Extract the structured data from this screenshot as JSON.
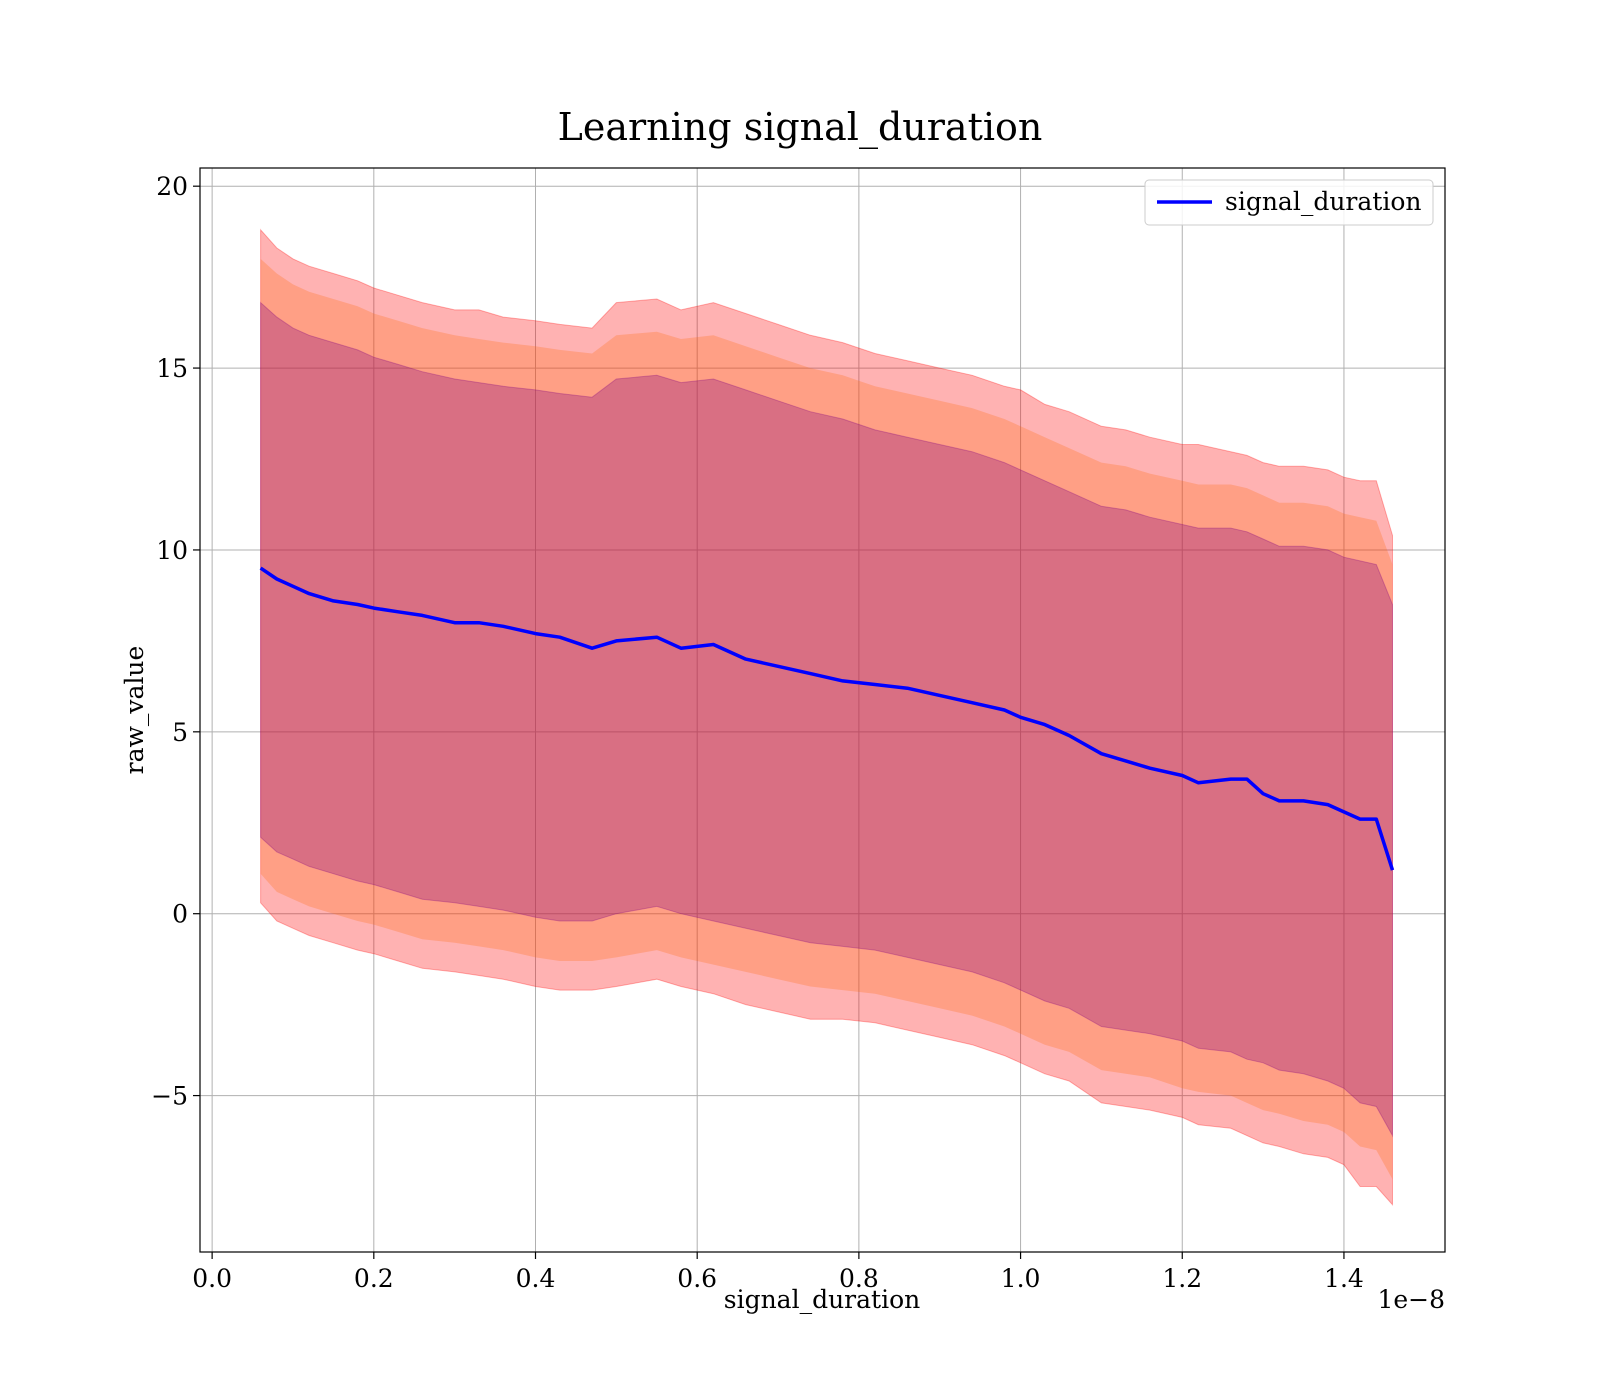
{
  "chart_data": {
    "type": "area",
    "title": "Learning signal_duration",
    "xlabel": "signal_duration",
    "ylabel": "raw_value",
    "x_offset_label": "1e−8",
    "xlim": [
      -0.015,
      1.525
    ],
    "ylim": [
      -9.3,
      20.5
    ],
    "xticks": [
      0.0,
      0.2,
      0.4,
      0.6,
      0.8,
      1.0,
      1.2,
      1.4
    ],
    "xtick_labels": [
      "0.0",
      "0.2",
      "0.4",
      "0.6",
      "0.8",
      "1.0",
      "1.2",
      "1.4"
    ],
    "yticks": [
      -5,
      0,
      5,
      10,
      15,
      20
    ],
    "ytick_labels": [
      "−5",
      "0",
      "5",
      "10",
      "15",
      "20"
    ],
    "grid": true,
    "legend": {
      "position": "top-right",
      "entries": [
        "signal_duration"
      ]
    },
    "colors": {
      "line": "#0000ff",
      "band": "#ff0000",
      "band_mid": "#ff6600",
      "band_inner": "#800080",
      "grid": "#b0b0b0"
    },
    "series": [
      {
        "name": "signal_duration",
        "x": [
          0.06,
          0.08,
          0.1,
          0.12,
          0.15,
          0.18,
          0.2,
          0.23,
          0.26,
          0.3,
          0.33,
          0.36,
          0.4,
          0.43,
          0.47,
          0.5,
          0.55,
          0.58,
          0.62,
          0.66,
          0.7,
          0.74,
          0.78,
          0.82,
          0.86,
          0.9,
          0.94,
          0.98,
          1.0,
          1.03,
          1.06,
          1.1,
          1.13,
          1.16,
          1.2,
          1.22,
          1.26,
          1.28,
          1.3,
          1.32,
          1.35,
          1.38,
          1.4,
          1.42,
          1.44,
          1.46
        ],
        "values": [
          9.5,
          9.2,
          9.0,
          8.8,
          8.6,
          8.5,
          8.4,
          8.3,
          8.2,
          8.0,
          8.0,
          7.9,
          7.7,
          7.6,
          7.3,
          7.5,
          7.6,
          7.3,
          7.4,
          7.0,
          6.8,
          6.6,
          6.4,
          6.3,
          6.2,
          6.0,
          5.8,
          5.6,
          5.4,
          5.2,
          4.9,
          4.4,
          4.2,
          4.0,
          3.8,
          3.6,
          3.7,
          3.7,
          3.3,
          3.1,
          3.1,
          3.0,
          2.8,
          2.6,
          2.6,
          1.2
        ],
        "band_outer": {
          "upper": [
            18.8,
            18.3,
            18.0,
            17.8,
            17.6,
            17.4,
            17.2,
            17.0,
            16.8,
            16.6,
            16.6,
            16.4,
            16.3,
            16.2,
            16.1,
            16.8,
            16.9,
            16.6,
            16.8,
            16.5,
            16.2,
            15.9,
            15.7,
            15.4,
            15.2,
            15.0,
            14.8,
            14.5,
            14.4,
            14.0,
            13.8,
            13.4,
            13.3,
            13.1,
            12.9,
            12.9,
            12.7,
            12.6,
            12.4,
            12.3,
            12.3,
            12.2,
            12.0,
            11.9,
            11.9,
            10.4
          ],
          "lower": [
            0.3,
            -0.2,
            -0.4,
            -0.6,
            -0.8,
            -1.0,
            -1.1,
            -1.3,
            -1.5,
            -1.6,
            -1.7,
            -1.8,
            -2.0,
            -2.1,
            -2.1,
            -2.0,
            -1.8,
            -2.0,
            -2.2,
            -2.5,
            -2.7,
            -2.9,
            -2.9,
            -3.0,
            -3.2,
            -3.4,
            -3.6,
            -3.9,
            -4.1,
            -4.4,
            -4.6,
            -5.2,
            -5.3,
            -5.4,
            -5.6,
            -5.8,
            -5.9,
            -6.1,
            -6.3,
            -6.4,
            -6.6,
            -6.7,
            -6.9,
            -7.5,
            -7.5,
            -8.0
          ]
        },
        "band_mid": {
          "upper": [
            18.0,
            17.6,
            17.3,
            17.1,
            16.9,
            16.7,
            16.5,
            16.3,
            16.1,
            15.9,
            15.8,
            15.7,
            15.6,
            15.5,
            15.4,
            15.9,
            16.0,
            15.8,
            15.9,
            15.6,
            15.3,
            15.0,
            14.8,
            14.5,
            14.3,
            14.1,
            13.9,
            13.6,
            13.4,
            13.1,
            12.8,
            12.4,
            12.3,
            12.1,
            11.9,
            11.8,
            11.8,
            11.7,
            11.5,
            11.3,
            11.3,
            11.2,
            11.0,
            10.9,
            10.8,
            9.6
          ],
          "lower": [
            1.1,
            0.6,
            0.4,
            0.2,
            0.0,
            -0.2,
            -0.3,
            -0.5,
            -0.7,
            -0.8,
            -0.9,
            -1.0,
            -1.2,
            -1.3,
            -1.3,
            -1.2,
            -1.0,
            -1.2,
            -1.4,
            -1.6,
            -1.8,
            -2.0,
            -2.1,
            -2.2,
            -2.4,
            -2.6,
            -2.8,
            -3.1,
            -3.3,
            -3.6,
            -3.8,
            -4.3,
            -4.4,
            -4.5,
            -4.8,
            -4.9,
            -5.0,
            -5.2,
            -5.4,
            -5.5,
            -5.7,
            -5.8,
            -6.0,
            -6.4,
            -6.5,
            -7.3
          ]
        },
        "band_inner": {
          "upper": [
            16.8,
            16.4,
            16.1,
            15.9,
            15.7,
            15.5,
            15.3,
            15.1,
            14.9,
            14.7,
            14.6,
            14.5,
            14.4,
            14.3,
            14.2,
            14.7,
            14.8,
            14.6,
            14.7,
            14.4,
            14.1,
            13.8,
            13.6,
            13.3,
            13.1,
            12.9,
            12.7,
            12.4,
            12.2,
            11.9,
            11.6,
            11.2,
            11.1,
            10.9,
            10.7,
            10.6,
            10.6,
            10.5,
            10.3,
            10.1,
            10.1,
            10.0,
            9.8,
            9.7,
            9.6,
            8.5
          ],
          "lower": [
            2.1,
            1.7,
            1.5,
            1.3,
            1.1,
            0.9,
            0.8,
            0.6,
            0.4,
            0.3,
            0.2,
            0.1,
            -0.1,
            -0.2,
            -0.2,
            0.0,
            0.2,
            0.0,
            -0.2,
            -0.4,
            -0.6,
            -0.8,
            -0.9,
            -1.0,
            -1.2,
            -1.4,
            -1.6,
            -1.9,
            -2.1,
            -2.4,
            -2.6,
            -3.1,
            -3.2,
            -3.3,
            -3.5,
            -3.7,
            -3.8,
            -4.0,
            -4.1,
            -4.3,
            -4.4,
            -4.6,
            -4.8,
            -5.2,
            -5.3,
            -6.1
          ]
        }
      }
    ]
  }
}
